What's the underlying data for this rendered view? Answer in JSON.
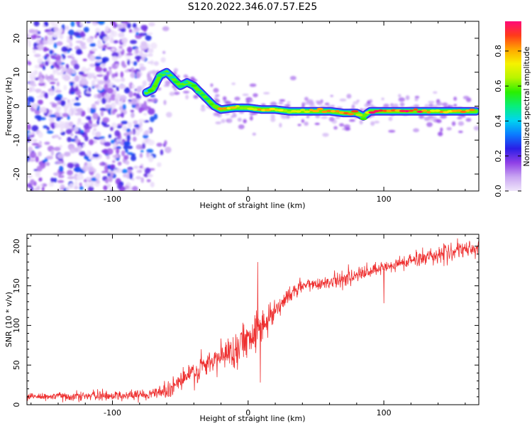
{
  "chart_data": [
    {
      "type": "heatmap",
      "title": "S120.2022.346.07.57.E25",
      "xlabel": "Height of straight line (km)",
      "ylabel": "Frequency (Hz)",
      "xlim": [
        -163,
        170
      ],
      "ylim": [
        -25,
        25
      ],
      "x_ticks": [
        -100,
        0,
        100
      ],
      "x_tick_labels": [
        "-100",
        "0",
        "100"
      ],
      "y_ticks": [
        -20,
        -10,
        0,
        10,
        20
      ],
      "y_tick_labels": [
        "-20",
        "-10",
        "0",
        "10",
        "20"
      ],
      "colorbar": {
        "label": "Normalized spectral amplitude",
        "range": [
          0,
          0.97
        ],
        "ticks": [
          0.0,
          0.2,
          0.4,
          0.6,
          0.8
        ],
        "tick_labels": [
          "0.0",
          "0.2",
          "0.4",
          "0.6",
          "0.8"
        ],
        "colors": [
          "#f0e6fb",
          "#c9a6f2",
          "#8f3fe6",
          "#2a1ee6",
          "#0b7cff",
          "#00d5f0",
          "#08ee7a",
          "#2aef00",
          "#b8f500",
          "#f6f200",
          "#ffa800",
          "#ff3b1a",
          "#ff0a78"
        ]
      },
      "ridge": {
        "x": [
          -75,
          -70,
          -65,
          -60,
          -55,
          -50,
          -45,
          -40,
          -35,
          -30,
          -25,
          -20,
          -10,
          0,
          10,
          20,
          30,
          40,
          50,
          60,
          70,
          75,
          80,
          85,
          90,
          100,
          120,
          140,
          160,
          168
        ],
        "y": [
          4,
          5,
          9,
          10,
          8,
          6,
          7,
          6,
          4,
          2,
          0,
          -1,
          -0.5,
          -0.5,
          -1,
          -1,
          -1.5,
          -1.5,
          -1.5,
          -1.5,
          -2,
          -2,
          -2,
          -3,
          -1.5,
          -1.5,
          -1.5,
          -1.5,
          -1.5,
          -1.5
        ],
        "amplitude": [
          0.45,
          0.6,
          0.5,
          0.4,
          0.5,
          0.55,
          0.5,
          0.55,
          0.5,
          0.5,
          0.6,
          0.95,
          0.75,
          0.7,
          0.8,
          0.75,
          0.7,
          0.75,
          0.85,
          0.95,
          0.8,
          0.95,
          0.8,
          0.6,
          0.95,
          0.9,
          0.95,
          0.8,
          0.85,
          0.8
        ]
      },
      "noise_region": [
        -163,
        -70
      ]
    },
    {
      "type": "line",
      "xlabel": "Height of straight line (km)",
      "ylabel": "SNR (10 * v/v)",
      "xlim": [
        -163,
        170
      ],
      "ylim": [
        0,
        215
      ],
      "x_ticks": [
        -100,
        0,
        100
      ],
      "x_tick_labels": [
        "-100",
        "0",
        "100"
      ],
      "y_ticks": [
        0,
        50,
        100,
        150,
        200
      ],
      "y_tick_labels": [
        "0",
        "50",
        "100",
        "150",
        "200"
      ],
      "color": "#ee3030",
      "trend": {
        "x": [
          -163,
          -120,
          -80,
          -60,
          -50,
          -40,
          -30,
          -20,
          -10,
          0,
          5,
          10,
          20,
          30,
          40,
          60,
          80,
          100,
          120,
          140,
          160,
          170
        ],
        "y": [
          10,
          11,
          12,
          18,
          30,
          40,
          50,
          60,
          70,
          85,
          95,
          100,
          120,
          138,
          150,
          155,
          163,
          172,
          182,
          190,
          195,
          198
        ]
      },
      "noise_amplitude": {
        "x": [
          -163,
          -70,
          -50,
          -20,
          10,
          30,
          60,
          170
        ],
        "y": [
          5,
          6,
          14,
          18,
          22,
          9,
          8,
          10
        ]
      },
      "outliers": [
        {
          "x": 7,
          "y": 180
        },
        {
          "x": 9,
          "y": 28
        },
        {
          "x": 100,
          "y": 128
        }
      ]
    }
  ]
}
